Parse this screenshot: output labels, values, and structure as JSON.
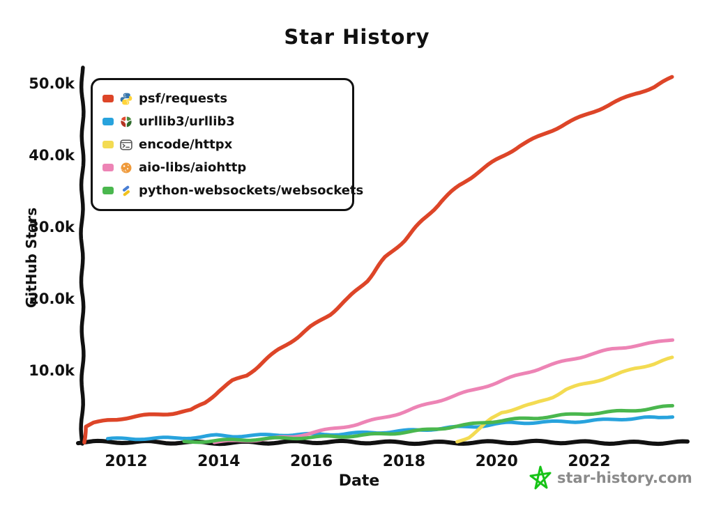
{
  "title": "Star History",
  "watermark": {
    "label": "star-history.com",
    "star_color": "#17c317",
    "text_color": "#8a8a8a"
  },
  "chart_data": {
    "type": "line",
    "title": "Star History",
    "xlabel": "Date",
    "ylabel": "GitHub Stars",
    "y_unit": "thousands of stars",
    "x_range_years": [
      2011.05,
      2023.95
    ],
    "ylim_k": [
      0,
      52
    ],
    "grid": false,
    "legend_position": "top-left",
    "x_ticks": [
      2012,
      2014,
      2016,
      2018,
      2020,
      2022
    ],
    "x_tick_labels": [
      "2012",
      "2014",
      "2016",
      "2018",
      "2020",
      "2022"
    ],
    "y_ticks_k": [
      10,
      20,
      30,
      40,
      50
    ],
    "y_tick_labels": [
      "10.0k",
      "20.0k",
      "30.0k",
      "40.0k",
      "50.0k"
    ],
    "axis_color": "#111111",
    "series": [
      {
        "name": "psf/requests",
        "color": "#dd4528",
        "icon": "python-icon",
        "points_year_stars_k": [
          [
            2011.07,
            0
          ],
          [
            2011.12,
            2.2
          ],
          [
            2011.3,
            2.7
          ],
          [
            2011.6,
            3.1
          ],
          [
            2012.0,
            3.4
          ],
          [
            2012.4,
            3.7
          ],
          [
            2012.8,
            3.9
          ],
          [
            2013.0,
            4.0
          ],
          [
            2013.4,
            4.4
          ],
          [
            2013.7,
            5.5
          ],
          [
            2014.0,
            7.2
          ],
          [
            2014.3,
            8.6
          ],
          [
            2014.6,
            9.4
          ],
          [
            2015.0,
            11.5
          ],
          [
            2015.3,
            13.0
          ],
          [
            2015.7,
            14.7
          ],
          [
            2016.0,
            16.1
          ],
          [
            2016.4,
            17.8
          ],
          [
            2016.8,
            20.0
          ],
          [
            2017.2,
            22.5
          ],
          [
            2017.6,
            25.8
          ],
          [
            2018.0,
            28.2
          ],
          [
            2018.4,
            31.0
          ],
          [
            2018.8,
            33.6
          ],
          [
            2019.2,
            35.8
          ],
          [
            2019.6,
            37.6
          ],
          [
            2020.0,
            39.3
          ],
          [
            2020.5,
            41.3
          ],
          [
            2021.0,
            42.9
          ],
          [
            2021.5,
            44.5
          ],
          [
            2022.0,
            45.9
          ],
          [
            2022.5,
            47.3
          ],
          [
            2023.0,
            48.6
          ],
          [
            2023.4,
            49.5
          ],
          [
            2023.8,
            50.8
          ]
        ]
      },
      {
        "name": "urllib3/urllib3",
        "color": "#28a3dd",
        "icon": "urllib3-icon",
        "points_year_stars_k": [
          [
            2011.6,
            0.45
          ],
          [
            2012.0,
            0.55
          ],
          [
            2012.5,
            0.6
          ],
          [
            2013.0,
            0.65
          ],
          [
            2013.6,
            0.75
          ],
          [
            2013.95,
            0.95
          ],
          [
            2014.3,
            0.85
          ],
          [
            2014.8,
            0.9
          ],
          [
            2015.3,
            1.0
          ],
          [
            2016.0,
            1.1
          ],
          [
            2016.6,
            1.2
          ],
          [
            2017.2,
            1.4
          ],
          [
            2017.8,
            1.55
          ],
          [
            2018.4,
            1.75
          ],
          [
            2019.0,
            2.0
          ],
          [
            2019.6,
            2.2
          ],
          [
            2020.0,
            2.5
          ],
          [
            2020.3,
            2.7
          ],
          [
            2020.8,
            2.8
          ],
          [
            2021.3,
            2.9
          ],
          [
            2021.8,
            3.0
          ],
          [
            2022.3,
            3.15
          ],
          [
            2022.8,
            3.3
          ],
          [
            2023.2,
            3.4
          ],
          [
            2023.5,
            3.35
          ],
          [
            2023.8,
            3.6
          ]
        ]
      },
      {
        "name": "encode/httpx",
        "color": "#f3db52",
        "icon": "terminal-icon",
        "points_year_stars_k": [
          [
            2019.15,
            0.05
          ],
          [
            2019.4,
            0.7
          ],
          [
            2019.65,
            1.9
          ],
          [
            2019.9,
            3.3
          ],
          [
            2020.1,
            4.2
          ],
          [
            2020.4,
            4.7
          ],
          [
            2020.8,
            5.4
          ],
          [
            2021.2,
            6.4
          ],
          [
            2021.5,
            7.4
          ],
          [
            2021.8,
            8.0
          ],
          [
            2022.2,
            8.7
          ],
          [
            2022.6,
            9.4
          ],
          [
            2023.0,
            10.3
          ],
          [
            2023.4,
            10.9
          ],
          [
            2023.8,
            11.7
          ]
        ]
      },
      {
        "name": "aio-libs/aiohttp",
        "color": "#ed84b5",
        "icon": "aiohttp-icon",
        "points_year_stars_k": [
          [
            2013.9,
            0.05
          ],
          [
            2014.3,
            0.15
          ],
          [
            2014.8,
            0.3
          ],
          [
            2015.2,
            0.5
          ],
          [
            2015.6,
            0.75
          ],
          [
            2016.0,
            1.3
          ],
          [
            2016.5,
            1.95
          ],
          [
            2017.0,
            2.6
          ],
          [
            2017.5,
            3.4
          ],
          [
            2018.0,
            4.3
          ],
          [
            2018.5,
            5.3
          ],
          [
            2019.0,
            6.3
          ],
          [
            2019.5,
            7.2
          ],
          [
            2020.0,
            8.3
          ],
          [
            2020.5,
            9.4
          ],
          [
            2021.0,
            10.5
          ],
          [
            2021.6,
            11.6
          ],
          [
            2022.0,
            12.3
          ],
          [
            2022.5,
            13.0
          ],
          [
            2023.0,
            13.5
          ],
          [
            2023.4,
            13.8
          ],
          [
            2023.8,
            14.3
          ]
        ]
      },
      {
        "name": "python-websockets/websockets",
        "color": "#4ab74e",
        "icon": "websockets-icon",
        "points_year_stars_k": [
          [
            2013.25,
            0.1
          ],
          [
            2014.0,
            0.3
          ],
          [
            2014.7,
            0.4
          ],
          [
            2015.3,
            0.5
          ],
          [
            2016.0,
            0.65
          ],
          [
            2016.6,
            0.8
          ],
          [
            2017.2,
            1.05
          ],
          [
            2017.8,
            1.35
          ],
          [
            2018.3,
            1.65
          ],
          [
            2018.8,
            2.0
          ],
          [
            2019.3,
            2.35
          ],
          [
            2019.8,
            2.8
          ],
          [
            2020.3,
            3.1
          ],
          [
            2020.8,
            3.35
          ],
          [
            2021.3,
            3.7
          ],
          [
            2021.8,
            4.0
          ],
          [
            2022.3,
            4.2
          ],
          [
            2022.8,
            4.45
          ],
          [
            2023.3,
            4.7
          ],
          [
            2023.8,
            5.05
          ]
        ]
      }
    ]
  }
}
